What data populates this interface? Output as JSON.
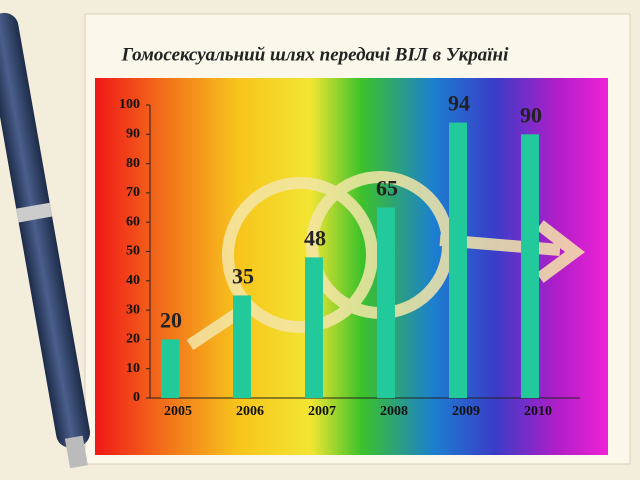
{
  "chart_data": {
    "type": "bar",
    "title": "Гомосексуальний шлях передачі ВІЛ в Україні",
    "categories": [
      "2005",
      "2006",
      "2007",
      "2008",
      "2009",
      "2010"
    ],
    "values": [
      20,
      35,
      48,
      65,
      94,
      90
    ],
    "color": "#22c99b",
    "ylim": [
      0,
      100
    ],
    "yticks": [
      0,
      10,
      20,
      30,
      40,
      50,
      60,
      70,
      80,
      90,
      100
    ]
  }
}
